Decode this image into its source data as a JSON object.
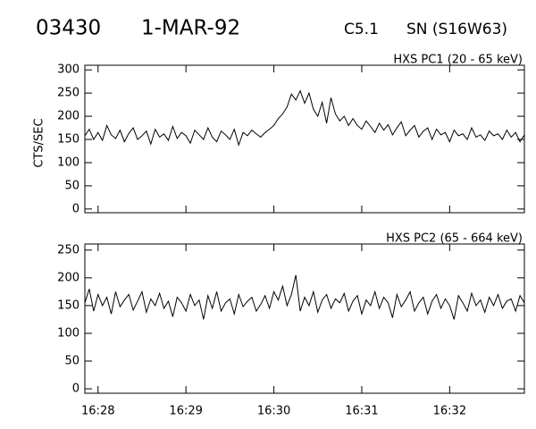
{
  "header": {
    "event": "03430",
    "date": "1-MAR-92",
    "class": "C5.1",
    "location": "SN (S16W63)"
  },
  "chart_data": [
    {
      "type": "line",
      "title": "HXS PC1 (20 - 65 keV)",
      "ylabel": "CTS/SEC",
      "color": "#000000",
      "x": [
        27.85,
        27.9,
        27.95,
        28,
        28.05,
        28.1,
        28.15,
        28.2,
        28.25,
        28.3,
        28.35,
        28.4,
        28.45,
        28.5,
        28.55,
        28.6,
        28.65,
        28.7,
        28.75,
        28.8,
        28.85,
        28.9,
        28.95,
        29,
        29.05,
        29.1,
        29.15,
        29.2,
        29.25,
        29.3,
        29.35,
        29.4,
        29.45,
        29.5,
        29.55,
        29.6,
        29.65,
        29.7,
        29.75,
        29.8,
        29.85,
        29.9,
        29.95,
        30,
        30.05,
        30.1,
        30.15,
        30.2,
        30.25,
        30.3,
        30.35,
        30.4,
        30.45,
        30.5,
        30.55,
        30.6,
        30.65,
        30.7,
        30.75,
        30.8,
        30.85,
        30.9,
        30.95,
        31,
        31.05,
        31.1,
        31.15,
        31.2,
        31.25,
        31.3,
        31.35,
        31.4,
        31.45,
        31.5,
        31.55,
        31.6,
        31.65,
        31.7,
        31.75,
        31.8,
        31.85,
        31.9,
        31.95,
        32,
        32.05,
        32.1,
        32.15,
        32.2,
        32.25,
        32.3,
        32.35,
        32.4,
        32.45,
        32.5,
        32.55,
        32.6,
        32.65,
        32.7,
        32.75,
        32.8,
        32.85
      ],
      "values": [
        158,
        172,
        150,
        165,
        148,
        180,
        160,
        152,
        170,
        145,
        163,
        175,
        150,
        158,
        168,
        140,
        172,
        155,
        162,
        148,
        178,
        152,
        165,
        158,
        142,
        170,
        160,
        150,
        175,
        155,
        145,
        168,
        160,
        150,
        172,
        138,
        165,
        158,
        170,
        162,
        155,
        165,
        172,
        180,
        195,
        205,
        220,
        248,
        235,
        255,
        228,
        250,
        215,
        200,
        230,
        185,
        240,
        205,
        190,
        200,
        180,
        195,
        180,
        172,
        190,
        178,
        165,
        185,
        170,
        182,
        160,
        175,
        188,
        158,
        170,
        180,
        155,
        168,
        175,
        150,
        172,
        160,
        165,
        145,
        170,
        158,
        162,
        150,
        175,
        155,
        160,
        148,
        168,
        158,
        162,
        150,
        170,
        155,
        165,
        145,
        160
      ],
      "xlim": [
        27.85,
        32.85
      ],
      "ylim": [
        -8,
        310
      ],
      "yticks": [
        0,
        50,
        100,
        150,
        200,
        250,
        300
      ]
    },
    {
      "type": "line",
      "title": "HXS PC2 (65 - 664 keV)",
      "color": "#000000",
      "x": [
        27.85,
        27.9,
        27.95,
        28,
        28.05,
        28.1,
        28.15,
        28.2,
        28.25,
        28.3,
        28.35,
        28.4,
        28.45,
        28.5,
        28.55,
        28.6,
        28.65,
        28.7,
        28.75,
        28.8,
        28.85,
        28.9,
        28.95,
        29,
        29.05,
        29.1,
        29.15,
        29.2,
        29.25,
        29.3,
        29.35,
        29.4,
        29.45,
        29.5,
        29.55,
        29.6,
        29.65,
        29.7,
        29.75,
        29.8,
        29.85,
        29.9,
        29.95,
        30,
        30.05,
        30.1,
        30.15,
        30.2,
        30.25,
        30.3,
        30.35,
        30.4,
        30.45,
        30.5,
        30.55,
        30.6,
        30.65,
        30.7,
        30.75,
        30.8,
        30.85,
        30.9,
        30.95,
        31,
        31.05,
        31.1,
        31.15,
        31.2,
        31.25,
        31.3,
        31.35,
        31.4,
        31.45,
        31.5,
        31.55,
        31.6,
        31.65,
        31.7,
        31.75,
        31.8,
        31.85,
        31.9,
        31.95,
        32,
        32.05,
        32.1,
        32.15,
        32.2,
        32.25,
        32.3,
        32.35,
        32.4,
        32.45,
        32.5,
        32.55,
        32.6,
        32.65,
        32.7,
        32.75,
        32.8,
        32.85
      ],
      "values": [
        155,
        180,
        140,
        170,
        150,
        165,
        135,
        175,
        148,
        160,
        170,
        142,
        158,
        175,
        138,
        162,
        150,
        172,
        145,
        158,
        130,
        165,
        155,
        140,
        170,
        150,
        160,
        125,
        168,
        145,
        175,
        140,
        155,
        162,
        135,
        170,
        148,
        158,
        165,
        140,
        152,
        168,
        145,
        175,
        160,
        185,
        150,
        170,
        205,
        140,
        165,
        150,
        175,
        138,
        160,
        170,
        145,
        162,
        155,
        172,
        140,
        158,
        168,
        135,
        160,
        150,
        175,
        145,
        165,
        155,
        128,
        170,
        148,
        160,
        175,
        140,
        155,
        165,
        135,
        158,
        170,
        145,
        162,
        150,
        125,
        168,
        155,
        140,
        172,
        150,
        160,
        138,
        165,
        150,
        170,
        145,
        158,
        162,
        140,
        168,
        155
      ],
      "xlim": [
        27.85,
        32.85
      ],
      "ylim": [
        -8,
        261
      ],
      "yticks": [
        0,
        50,
        100,
        150,
        200,
        250
      ],
      "xticks": [
        {
          "value": 28,
          "label": "16:28"
        },
        {
          "value": 29,
          "label": "16:29"
        },
        {
          "value": 30,
          "label": "16:30"
        },
        {
          "value": 31,
          "label": "16:31"
        },
        {
          "value": 32,
          "label": "16:32"
        }
      ]
    }
  ]
}
